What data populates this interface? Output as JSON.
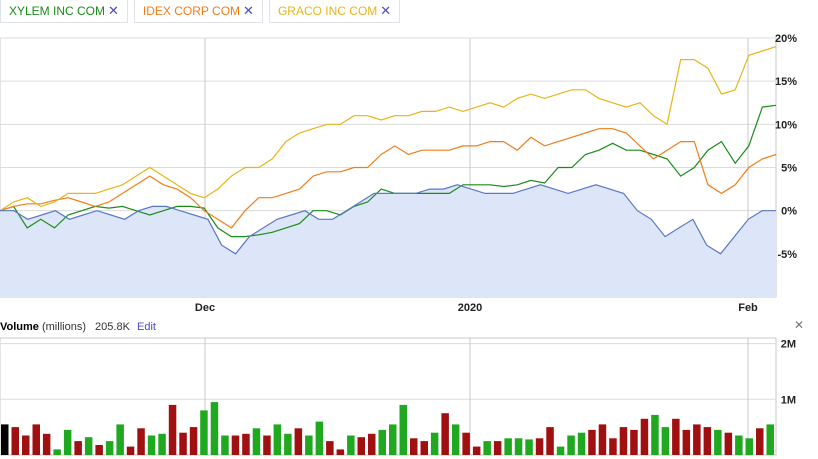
{
  "legend": [
    {
      "label": "XYLEM INC COM",
      "color": "#1a8c1a",
      "close": "✕"
    },
    {
      "label": "IDEX CORP COM",
      "color": "#f07d1a",
      "close": "✕"
    },
    {
      "label": "GRACO INC COM",
      "color": "#e8b41a",
      "close": "✕"
    }
  ],
  "volume_panel": {
    "title": "Volume",
    "unit": "(millions)",
    "value": "205.8K",
    "edit_label": "Edit",
    "close": "✕"
  },
  "chart_data": [
    {
      "type": "line",
      "x_ticks": [
        "Dec",
        "2020",
        "Feb"
      ],
      "y_ticks": [
        "20%",
        "15%",
        "10%",
        "5%",
        "0%",
        "-5%"
      ],
      "ylim": [
        -10,
        20
      ],
      "grid": true,
      "series": [
        {
          "name": "XYLEM INC COM",
          "color": "#1a8c1a",
          "values": [
            0,
            0.5,
            -2,
            -1,
            -2,
            -0.5,
            0,
            0.5,
            0.3,
            0.5,
            0,
            -0.5,
            0,
            0.5,
            0.5,
            0.3,
            -2,
            -3,
            -3,
            -2.8,
            -2.5,
            -2,
            -1.5,
            0,
            0,
            -0.5,
            0.5,
            1,
            2.5,
            2,
            2,
            2,
            2,
            2,
            3,
            3,
            3,
            2.8,
            3,
            3.5,
            3.2,
            5,
            5,
            6.5,
            7,
            7.8,
            7,
            7,
            6.5,
            6,
            4,
            5,
            7,
            8,
            5.5,
            7.5,
            12,
            12.2
          ]
        },
        {
          "name": "IDEX CORP COM",
          "color": "#f07d1a",
          "values": [
            0,
            0.5,
            0.8,
            0.8,
            1.2,
            1.5,
            1,
            0.5,
            1,
            2,
            3,
            4,
            3,
            2.5,
            1.5,
            0,
            -1,
            -2,
            0,
            1.5,
            1.5,
            2,
            2.5,
            4,
            4.5,
            4.5,
            5,
            5,
            6.5,
            7.5,
            6.5,
            7,
            7,
            7,
            7.5,
            7.5,
            8,
            8,
            7,
            8.5,
            7.5,
            8,
            8.5,
            9,
            9.5,
            9.5,
            9,
            7.5,
            6,
            7,
            8,
            8,
            3,
            2,
            3,
            5,
            6,
            6.5
          ]
        },
        {
          "name": "GRACO INC COM",
          "color": "#e8b41a",
          "values": [
            0,
            1,
            1.5,
            0.5,
            1,
            2,
            2,
            2,
            2.5,
            3,
            4,
            5,
            4,
            3,
            2,
            1.5,
            2.5,
            4,
            5,
            5,
            6,
            8,
            9,
            9.5,
            10,
            10,
            11,
            11,
            10.5,
            11,
            11,
            11.5,
            11.5,
            12,
            11.5,
            12,
            12.5,
            12,
            13,
            13.5,
            13,
            13.5,
            14,
            14,
            13,
            12.5,
            12,
            12.5,
            11,
            10,
            17.5,
            17.5,
            16.5,
            13.5,
            14,
            18,
            18.5,
            19
          ]
        },
        {
          "name": "",
          "color": "#5b78c8",
          "fill": "#dde6f8",
          "values": [
            0,
            0,
            -1,
            -0.5,
            0,
            -1,
            -0.5,
            0,
            -0.5,
            -1,
            0,
            0.5,
            0.5,
            0,
            -0.5,
            -1,
            -4,
            -5,
            -3,
            -2,
            -1,
            -0.5,
            0,
            -1,
            -1,
            0,
            1,
            2,
            2,
            2,
            2,
            2.5,
            2.5,
            3,
            2.5,
            2,
            2,
            2,
            2.5,
            3,
            2.5,
            2,
            2.5,
            3,
            2.5,
            2,
            0,
            -1,
            -3,
            -2,
            -1,
            -4,
            -5,
            -3,
            -1,
            0,
            0
          ]
        }
      ]
    },
    {
      "type": "bar",
      "y_ticks": [
        "2M",
        "1M"
      ],
      "ylim": [
        0,
        2.1
      ],
      "colors": {
        "up": "#21a821",
        "down": "#a01010",
        "first": "#000000"
      },
      "values": [
        0.55,
        0.5,
        0.35,
        0.55,
        0.38,
        0.1,
        0.45,
        0.25,
        0.32,
        0.18,
        0.25,
        0.55,
        0.15,
        0.48,
        0.35,
        0.38,
        0.9,
        0.4,
        0.5,
        0.8,
        0.95,
        0.35,
        0.35,
        0.38,
        0.48,
        0.35,
        0.55,
        0.38,
        0.48,
        0.35,
        0.6,
        0.25,
        0.1,
        0.35,
        0.32,
        0.38,
        0.45,
        0.55,
        0.9,
        0.3,
        0.25,
        0.4,
        0.75,
        0.55,
        0.4,
        0.15,
        0.25,
        0.25,
        0.3,
        0.3,
        0.28,
        0.3,
        0.5,
        0.15,
        0.35,
        0.4,
        0.45,
        0.55,
        0.3,
        0.5,
        0.45,
        0.65,
        0.72,
        0.5,
        0.65,
        0.45,
        0.55,
        0.5,
        0.45,
        0.4,
        0.35,
        0.3,
        0.48,
        0.55
      ],
      "directions": [
        "f",
        "d",
        "d",
        "d",
        "d",
        "u",
        "u",
        "d",
        "u",
        "d",
        "u",
        "u",
        "d",
        "d",
        "u",
        "u",
        "d",
        "d",
        "d",
        "u",
        "u",
        "u",
        "d",
        "d",
        "u",
        "d",
        "u",
        "u",
        "d",
        "u",
        "u",
        "d",
        "d",
        "u",
        "d",
        "d",
        "u",
        "u",
        "u",
        "d",
        "d",
        "u",
        "d",
        "u",
        "d",
        "d",
        "u",
        "d",
        "u",
        "u",
        "u",
        "d",
        "d",
        "u",
        "u",
        "u",
        "d",
        "d",
        "d",
        "d",
        "d",
        "d",
        "u",
        "u",
        "d",
        "d",
        "d",
        "d",
        "u",
        "d",
        "u",
        "u",
        "d",
        "u"
      ]
    }
  ]
}
